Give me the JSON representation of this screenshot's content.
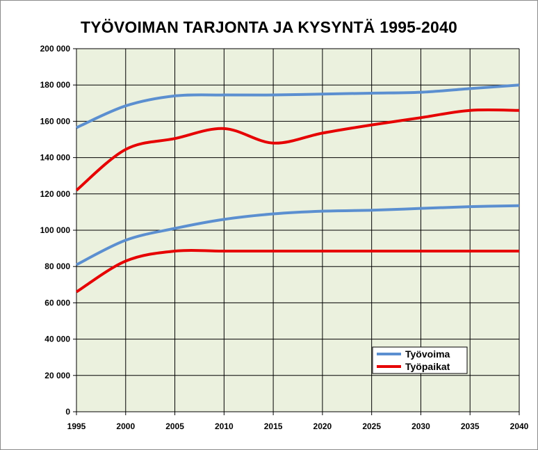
{
  "colors": {
    "plot_bg": "#EBF1DE",
    "grid": "#000000",
    "tyovoima": "#5B8FD0",
    "tyopaikat": "#E60000"
  },
  "chart_data": {
    "type": "line",
    "title": "TYÖVOIMAN TARJONTA JA KYSYNTÄ 1995-2040",
    "xlabel": "",
    "ylabel": "",
    "x": [
      1995,
      2000,
      2005,
      2010,
      2015,
      2020,
      2025,
      2030,
      2035,
      2040
    ],
    "xlim": [
      1995,
      2040
    ],
    "ylim": [
      0,
      200000
    ],
    "y_tick_labels": [
      "0",
      "20 000",
      "40 000",
      "60 000",
      "80 000",
      "100 000",
      "120 000",
      "140 000",
      "160 000",
      "180 000",
      "200 000"
    ],
    "y_ticks": [
      0,
      20000,
      40000,
      60000,
      80000,
      100000,
      120000,
      140000,
      160000,
      180000,
      200000
    ],
    "x_tick_labels": [
      "1995",
      "2000",
      "2005",
      "2010",
      "2015",
      "2020",
      "2025",
      "2030",
      "2035",
      "2040"
    ],
    "grid": true,
    "legend_position": "bottom-right",
    "legend": [
      "Työvoima",
      "Työpaikat"
    ],
    "series": [
      {
        "name": "Työvoima",
        "color_key": "tyovoima",
        "values": [
          156500,
          168500,
          174000,
          174500,
          174500,
          175000,
          175500,
          176000,
          178000,
          180000
        ]
      },
      {
        "name": "Työpaikat",
        "color_key": "tyopaikat",
        "values": [
          122000,
          144500,
          150500,
          156000,
          148000,
          153500,
          158000,
          162000,
          166000,
          166000
        ]
      },
      {
        "name": "",
        "color_key": "tyovoima",
        "values": [
          81000,
          94500,
          101000,
          106000,
          109000,
          110500,
          111000,
          112000,
          113000,
          113500
        ]
      },
      {
        "name": "",
        "color_key": "tyopaikat",
        "values": [
          66000,
          83000,
          88500,
          88500,
          88500,
          88500,
          88500,
          88500,
          88500,
          88500
        ]
      }
    ]
  }
}
